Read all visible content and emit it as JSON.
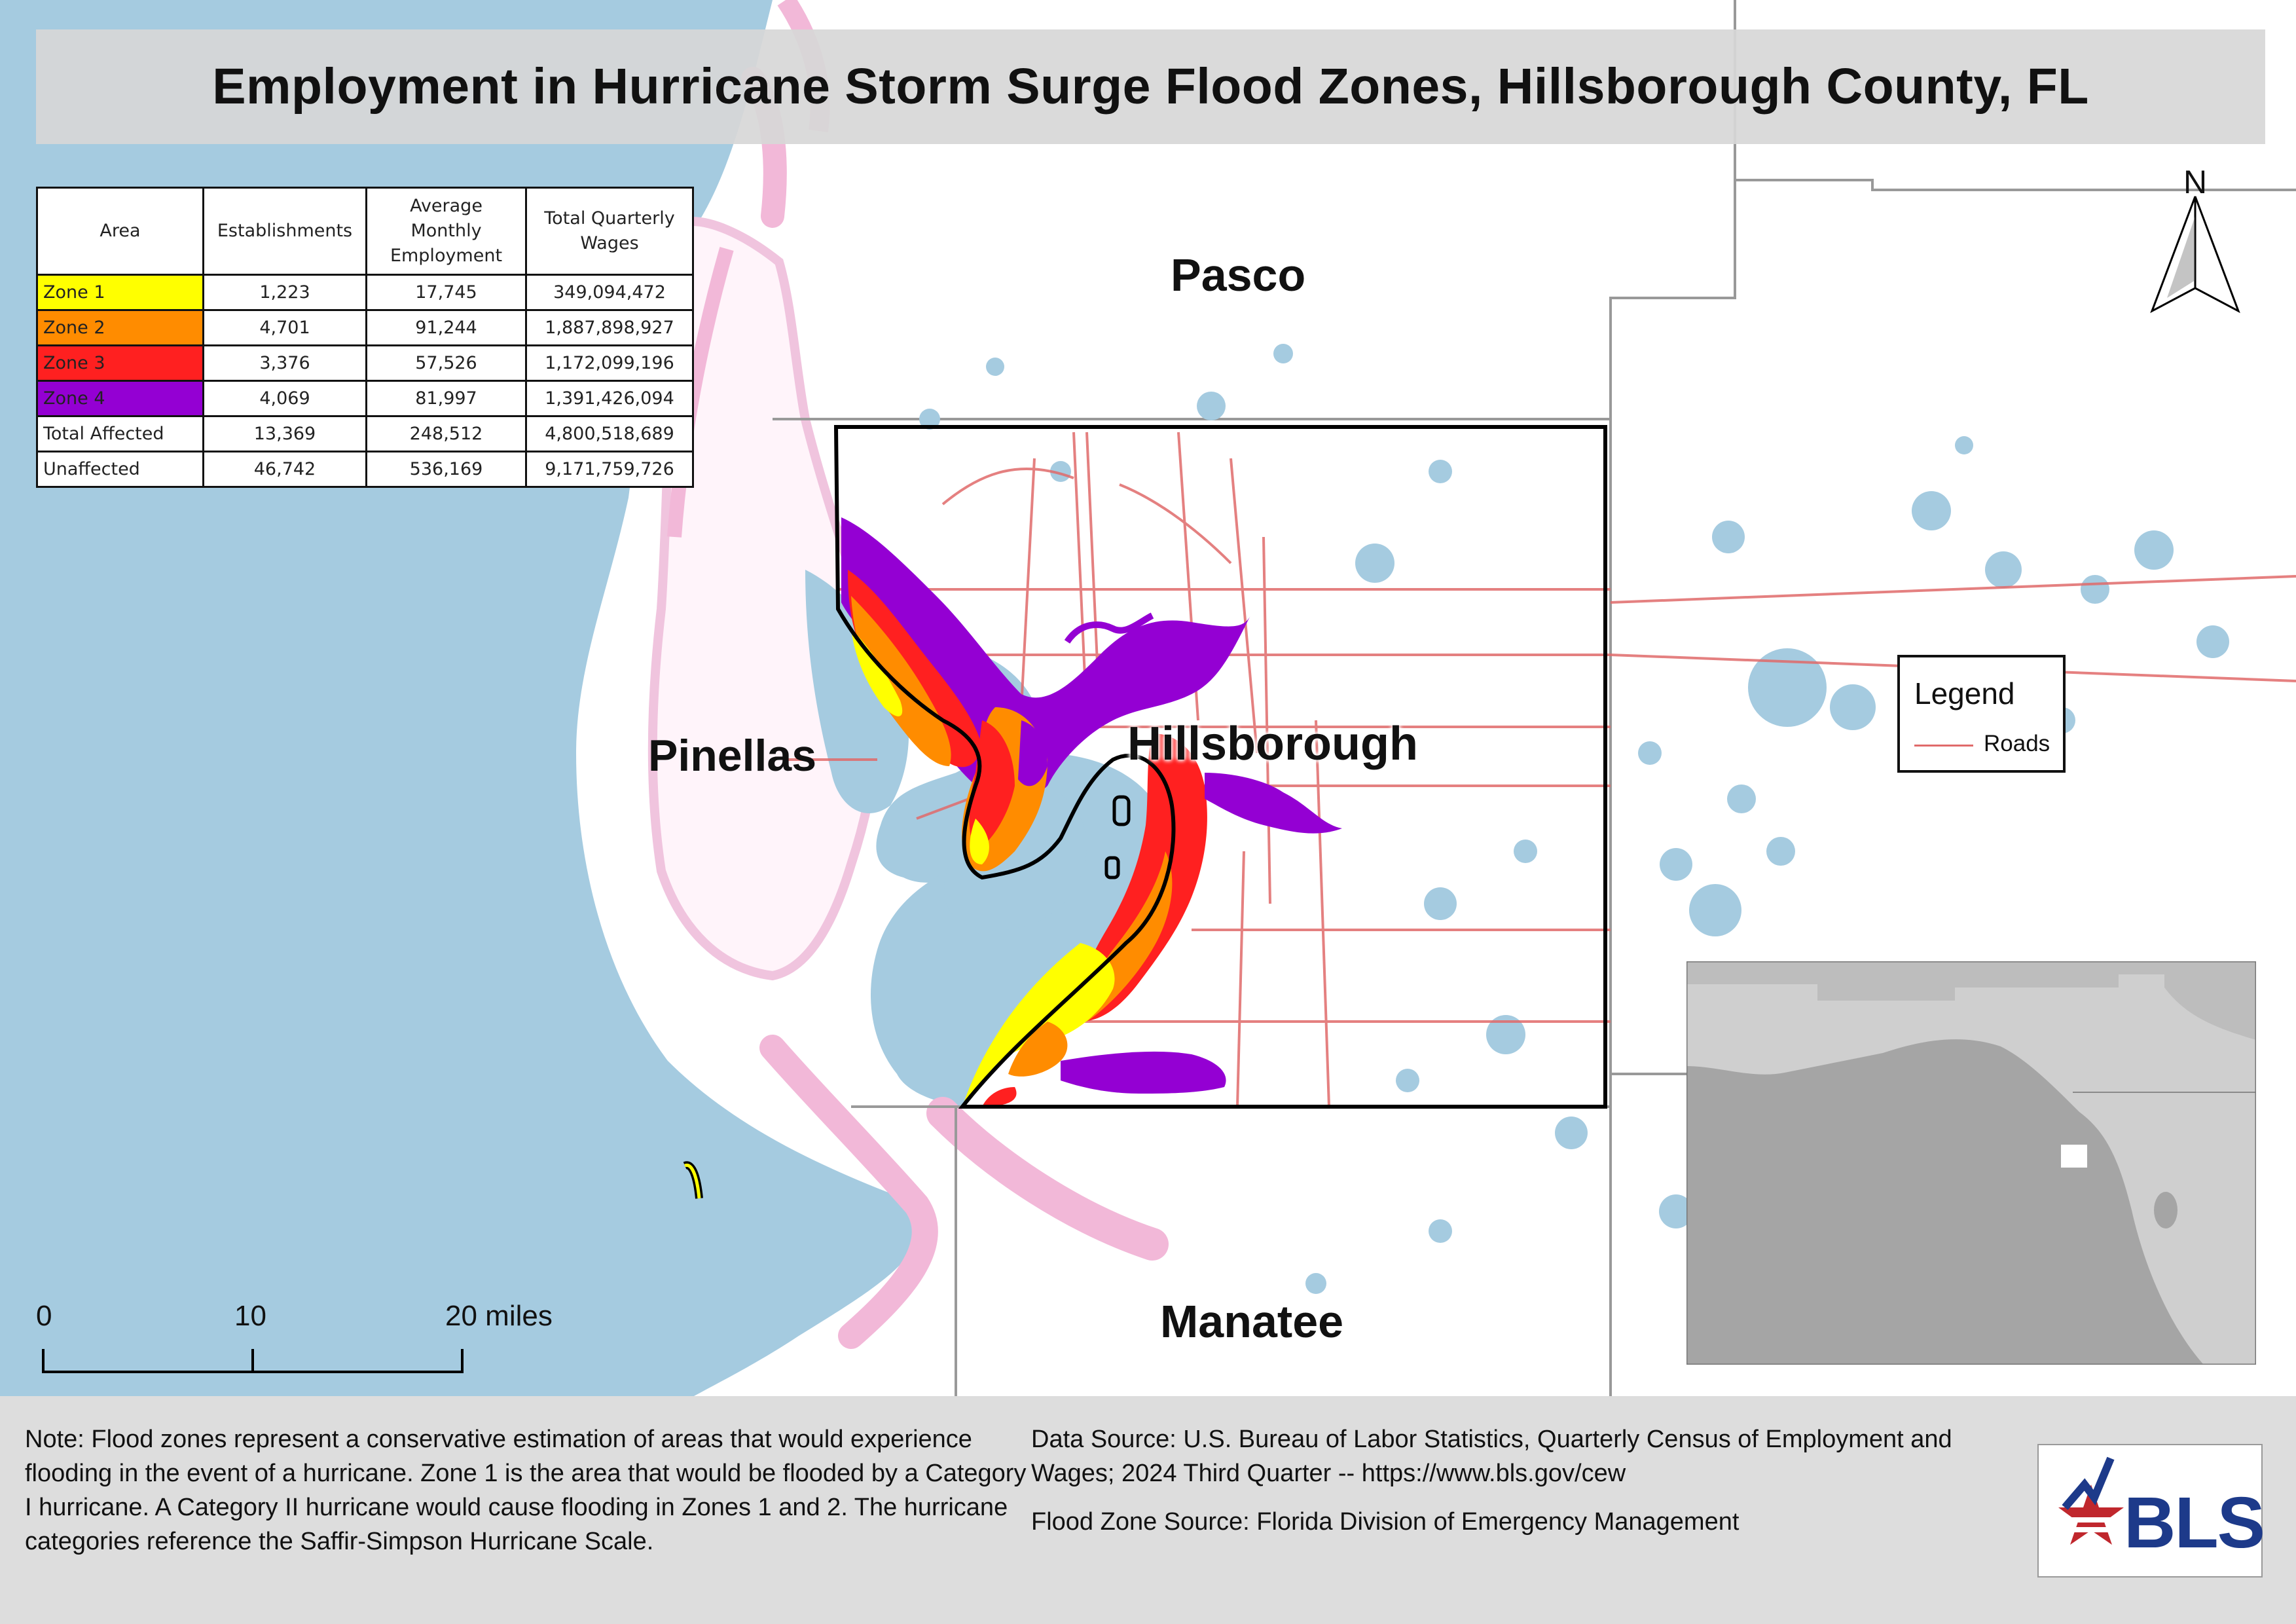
{
  "title": "Employment in Hurricane Storm Surge Flood Zones, Hillsborough County, FL",
  "table": {
    "headers": [
      "Area",
      "Establishments",
      "Average Monthly Employment",
      "Total Quarterly Wages"
    ],
    "rows": [
      {
        "area": "Zone 1",
        "color": "#ffff00",
        "establishments": "1,223",
        "employment": "17,745",
        "wages": "349,094,472"
      },
      {
        "area": "Zone 2",
        "color": "#ff8c00",
        "establishments": "4,701",
        "employment": "91,244",
        "wages": "1,887,898,927"
      },
      {
        "area": "Zone 3",
        "color": "#ff2020",
        "establishments": "3,376",
        "employment": "57,526",
        "wages": "1,172,099,196"
      },
      {
        "area": "Zone 4",
        "color": "#9400d3",
        "establishments": "4,069",
        "employment": "81,997",
        "wages": "1,391,426,094"
      },
      {
        "area": "Total Affected",
        "color": "#ffffff",
        "establishments": "13,369",
        "employment": "248,512",
        "wages": "4,800,518,689"
      },
      {
        "area": "Unaffected",
        "color": "#ffffff",
        "establishments": "46,742",
        "employment": "536,169",
        "wages": "9,171,759,726"
      }
    ]
  },
  "counties": {
    "pasco": "Pasco",
    "pinellas": "Pinellas",
    "hillsborough": "Hillsborough",
    "manatee": "Manatee"
  },
  "legend": {
    "title": "Legend",
    "roads_label": "Roads",
    "roads_color": "#e06a6a"
  },
  "north_arrow": "N",
  "scale_bar": {
    "labels": [
      "0",
      "10",
      "20 miles"
    ]
  },
  "note": "Note: Flood zones represent a conservative estimation of areas that would experience flooding in the event of a hurricane. Zone 1 is the area that would be flooded by a Category I hurricane. A Category II hurricane would cause flooding in Zones 1 and 2. The hurricane categories reference the Saffir-Simpson Hurricane Scale.",
  "data_source": "Data Source: U.S. Bureau of Labor Statistics, Quarterly Census of Employment and Wages; 2024 Third Quarter -- https://www.bls.gov/cew",
  "flood_zone_source": "Flood Zone Source: Florida Division of Emergency Management",
  "logo_text": "BLS",
  "colors": {
    "water": "#a5cbe0",
    "land": "#ffffff",
    "county_line": "#999999",
    "road": "#e06a6a",
    "coast_pink": "#f2b8d8",
    "zone1": "#ffff00",
    "zone2": "#ff8c00",
    "zone3": "#ff2020",
    "zone4": "#9400d3"
  }
}
